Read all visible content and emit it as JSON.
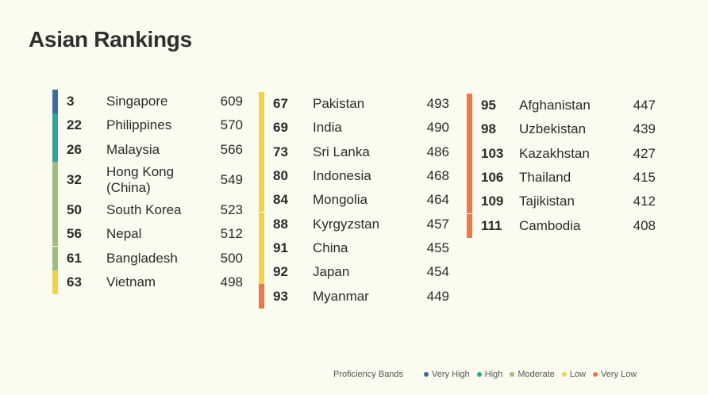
{
  "title": "Asian Rankings",
  "colors": {
    "very_high": "#3d6b9e",
    "high": "#2fa69a",
    "moderate": "#9cbf7e",
    "low": "#f0d24b",
    "very_low": "#ec7748"
  },
  "columns": [
    {
      "rows": [
        {
          "rank": "3",
          "country": "Singapore",
          "score": "609",
          "band": "very_high"
        },
        {
          "rank": "22",
          "country": "Philippines",
          "score": "570",
          "band": "high"
        },
        {
          "rank": "26",
          "country": "Malaysia",
          "score": "566",
          "band": "high"
        },
        {
          "rank": "32",
          "country": "Hong Kong\n(China)",
          "score": "549",
          "band": "moderate",
          "tall": true
        },
        {
          "rank": "50",
          "country": "South Korea",
          "score": "523",
          "band": "moderate"
        },
        {
          "rank": "56",
          "country": "Nepal",
          "score": "512",
          "band": "moderate"
        },
        {
          "rank": "61",
          "country": "Bangladesh",
          "score": "500",
          "band": "moderate"
        },
        {
          "rank": "63",
          "country": "Vietnam",
          "score": "498",
          "band": "low"
        }
      ]
    },
    {
      "rows": [
        {
          "rank": "67",
          "country": "Pakistan",
          "score": "493",
          "band": "low"
        },
        {
          "rank": "69",
          "country": "India",
          "score": "490",
          "band": "low"
        },
        {
          "rank": "73",
          "country": "Sri Lanka",
          "score": "486",
          "band": "low"
        },
        {
          "rank": "80",
          "country": "Indonesia",
          "score": "468",
          "band": "low"
        },
        {
          "rank": "84",
          "country": "Mongolia",
          "score": "464",
          "band": "low"
        },
        {
          "rank": "88",
          "country": "Kyrgyzstan",
          "score": "457",
          "band": "low"
        },
        {
          "rank": "91",
          "country": "China",
          "score": "455",
          "band": "low"
        },
        {
          "rank": "92",
          "country": "Japan",
          "score": "454",
          "band": "low"
        },
        {
          "rank": "93",
          "country": "Myanmar",
          "score": "449",
          "band": "very_low"
        }
      ]
    },
    {
      "rows": [
        {
          "rank": "95",
          "country": "Afghanistan",
          "score": "447",
          "band": "very_low"
        },
        {
          "rank": "98",
          "country": "Uzbekistan",
          "score": "439",
          "band": "very_low"
        },
        {
          "rank": "103",
          "country": "Kazakhstan",
          "score": "427",
          "band": "very_low"
        },
        {
          "rank": "106",
          "country": "Thailand",
          "score": "415",
          "band": "very_low"
        },
        {
          "rank": "109",
          "country": "Tajikistan",
          "score": "412",
          "band": "very_low"
        },
        {
          "rank": "111",
          "country": "Cambodia",
          "score": "408",
          "band": "very_low"
        }
      ]
    }
  ],
  "legend": {
    "label": "Proficiency Bands",
    "items": [
      {
        "band": "very_high",
        "label": "Very High"
      },
      {
        "band": "high",
        "label": "High"
      },
      {
        "band": "moderate",
        "label": "Moderate"
      },
      {
        "band": "low",
        "label": "Low"
      },
      {
        "band": "very_low",
        "label": "Very Low"
      }
    ]
  }
}
